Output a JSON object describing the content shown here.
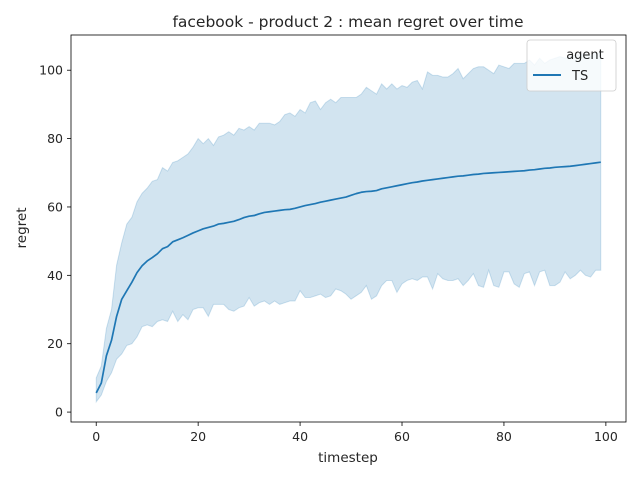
{
  "chart_data": {
    "type": "line",
    "title": "facebook - product 2 : mean regret over time",
    "xlabel": "timestep",
    "ylabel": "regret",
    "xlim": [
      -4.95,
      103.95
    ],
    "ylim": [
      -2.9,
      110.3
    ],
    "xticks": [
      0,
      20,
      40,
      60,
      80,
      100
    ],
    "yticks": [
      0,
      20,
      40,
      60,
      80,
      100
    ],
    "grid": false,
    "legend": {
      "title": "agent",
      "placement": "top-right"
    },
    "colors": {
      "line": "#1f77b4",
      "band": "#1f77b4"
    },
    "series": [
      {
        "name": "TS",
        "x": [
          0,
          1,
          2,
          3,
          4,
          5,
          6,
          7,
          8,
          9,
          10,
          11,
          12,
          13,
          14,
          15,
          16,
          17,
          18,
          19,
          20,
          21,
          22,
          23,
          24,
          25,
          26,
          27,
          28,
          29,
          30,
          31,
          32,
          33,
          34,
          35,
          36,
          37,
          38,
          39,
          40,
          41,
          42,
          43,
          44,
          45,
          46,
          47,
          48,
          49,
          50,
          51,
          52,
          53,
          54,
          55,
          56,
          57,
          58,
          59,
          60,
          61,
          62,
          63,
          64,
          65,
          66,
          67,
          68,
          69,
          70,
          71,
          72,
          73,
          74,
          75,
          76,
          77,
          78,
          79,
          80,
          81,
          82,
          83,
          84,
          85,
          86,
          87,
          88,
          89,
          90,
          91,
          92,
          93,
          94,
          95,
          96,
          97,
          98,
          99
        ],
        "mean": [
          5.6,
          8.5,
          16.5,
          21.0,
          28.0,
          33.0,
          35.5,
          38.0,
          40.8,
          42.8,
          44.2,
          45.2,
          46.3,
          47.8,
          48.4,
          49.8,
          50.4,
          51.0,
          51.7,
          52.4,
          53.0,
          53.6,
          54.0,
          54.4,
          55.0,
          55.2,
          55.5,
          55.8,
          56.3,
          56.9,
          57.3,
          57.5,
          58.0,
          58.4,
          58.6,
          58.8,
          59.0,
          59.2,
          59.3,
          59.6,
          60.0,
          60.4,
          60.7,
          61.0,
          61.4,
          61.7,
          62.0,
          62.3,
          62.6,
          62.9,
          63.4,
          63.9,
          64.3,
          64.5,
          64.6,
          64.8,
          65.3,
          65.6,
          65.9,
          66.2,
          66.5,
          66.8,
          67.1,
          67.3,
          67.6,
          67.8,
          68.0,
          68.2,
          68.4,
          68.6,
          68.8,
          69.0,
          69.1,
          69.3,
          69.5,
          69.6,
          69.8,
          69.9,
          70.0,
          70.1,
          70.2,
          70.3,
          70.4,
          70.5,
          70.6,
          70.8,
          70.9,
          71.1,
          71.3,
          71.4,
          71.6,
          71.7,
          71.8,
          71.9,
          72.1,
          72.3,
          72.5,
          72.7,
          72.9,
          73.1
        ],
        "upper": [
          10.0,
          13.5,
          24.5,
          30.0,
          43.0,
          49.5,
          55.0,
          57.0,
          61.5,
          64.0,
          65.5,
          67.5,
          68.0,
          71.5,
          70.5,
          73.0,
          73.5,
          74.5,
          75.5,
          77.5,
          80.0,
          78.5,
          80.0,
          78.0,
          80.5,
          81.0,
          82.0,
          81.0,
          83.0,
          82.5,
          83.5,
          82.5,
          84.5,
          84.5,
          84.5,
          84.0,
          85.0,
          87.0,
          87.5,
          86.5,
          88.5,
          87.5,
          90.5,
          91.0,
          88.5,
          90.5,
          91.5,
          90.5,
          92.0,
          92.0,
          92.0,
          92.0,
          93.0,
          95.0,
          94.0,
          93.0,
          96.0,
          94.5,
          96.0,
          94.5,
          95.5,
          95.0,
          96.5,
          97.0,
          94.5,
          99.5,
          98.5,
          98.5,
          98.0,
          98.0,
          99.0,
          100.5,
          97.5,
          99.0,
          100.5,
          101.0,
          101.0,
          100.0,
          99.0,
          101.5,
          101.0,
          100.5,
          102.0,
          102.0,
          102.0,
          103.0,
          101.5,
          103.5,
          102.0,
          103.0,
          103.5,
          104.0,
          103.5,
          104.0,
          104.5,
          104.5,
          105.0,
          104.0,
          105.0,
          105.0
        ],
        "lower": [
          3.0,
          5.0,
          9.0,
          11.5,
          15.5,
          17.0,
          19.5,
          20.0,
          22.0,
          25.0,
          25.5,
          25.0,
          26.5,
          27.0,
          26.5,
          29.5,
          26.5,
          28.5,
          27.0,
          30.0,
          30.5,
          30.5,
          28.0,
          31.5,
          31.5,
          31.5,
          30.0,
          29.5,
          30.5,
          31.0,
          33.5,
          31.0,
          32.0,
          32.5,
          31.5,
          32.5,
          31.5,
          32.0,
          32.5,
          32.5,
          35.5,
          33.5,
          33.5,
          34.0,
          34.5,
          33.5,
          34.0,
          36.0,
          35.5,
          34.5,
          33.0,
          34.0,
          35.0,
          37.0,
          33.0,
          34.0,
          37.0,
          38.5,
          38.5,
          35.0,
          37.5,
          38.5,
          39.0,
          38.5,
          39.5,
          39.5,
          36.0,
          40.5,
          39.0,
          38.5,
          38.5,
          39.0,
          37.0,
          38.5,
          40.5,
          37.0,
          36.5,
          41.5,
          37.0,
          36.5,
          41.0,
          41.0,
          37.5,
          36.5,
          40.5,
          41.0,
          37.0,
          41.0,
          41.5,
          37.0,
          37.0,
          38.0,
          41.0,
          39.0,
          40.0,
          41.5,
          40.0,
          39.5,
          41.5,
          41.5
        ]
      }
    ]
  }
}
